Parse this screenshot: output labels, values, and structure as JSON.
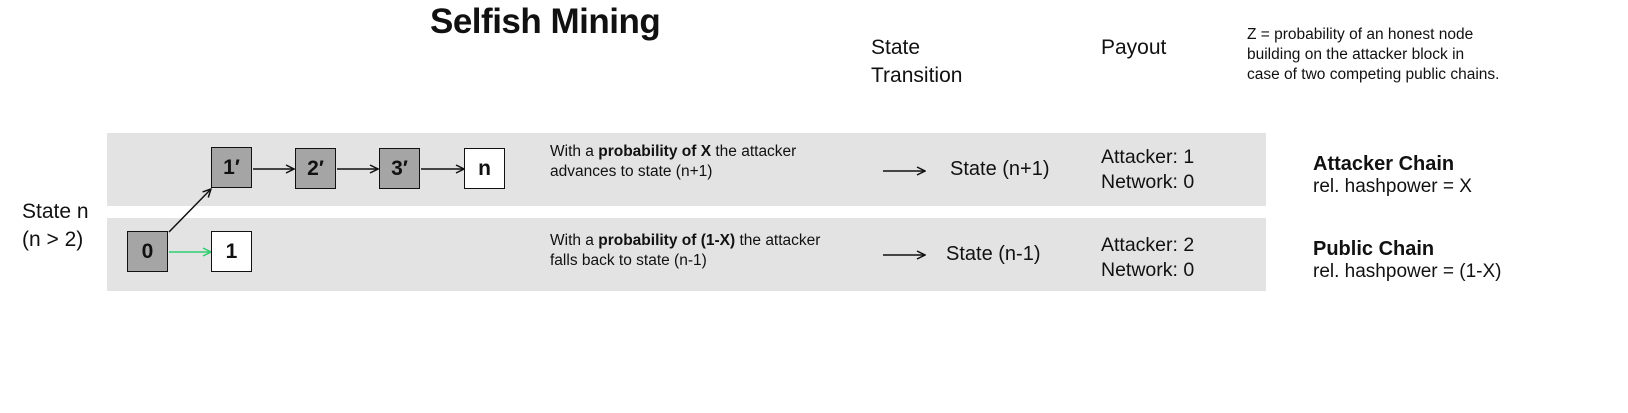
{
  "title": "Selfish Mining",
  "headers": {
    "state_transition": [
      "State",
      "Transition"
    ],
    "payout": "Payout"
  },
  "z_note": [
    "Z = probability of an honest node",
    "building on the attacker block in",
    "case of two competing public chains."
  ],
  "state_label": [
    "State n",
    "(n > 2)"
  ],
  "blocks": {
    "origin": "0",
    "attacker": [
      "1′",
      "2′",
      "3′",
      "n"
    ],
    "public": "1"
  },
  "rows": [
    {
      "desc_prefix": "With a ",
      "desc_bold": "probability of X",
      "desc_suffix": " the attacker",
      "desc_line2": "advances to state (n+1)",
      "transition": "State (n+1)",
      "payout_attacker": "Attacker: 1",
      "payout_network": "Network: 0",
      "chain_name": "Attacker Chain",
      "chain_hashpower": "rel. hashpower = X"
    },
    {
      "desc_prefix": "With a ",
      "desc_bold": "probability of (1-X)",
      "desc_suffix": " the attacker",
      "desc_line2": "falls back to state (n-1)",
      "transition": "State (n-1)",
      "payout_attacker": "Attacker: 2",
      "payout_network": "Network: 0",
      "chain_name": "Public Chain",
      "chain_hashpower": "rel. hashpower = (1-X)"
    }
  ],
  "colors": {
    "band": "#e3e3e3",
    "block_grey": "#a5a5a5",
    "public_link": "#2ecc71"
  }
}
